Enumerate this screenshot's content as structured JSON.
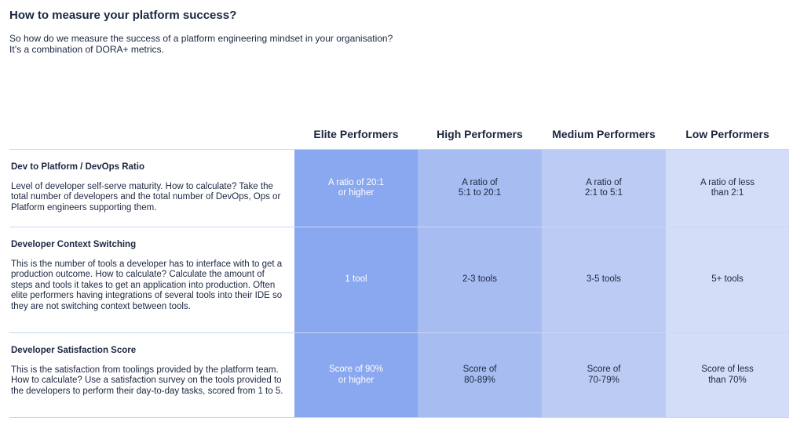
{
  "header": {
    "title": "How to measure your platform success?",
    "subtitle": [
      "So how do we measure the success of a platform engineering mindset in your organisation?",
      "It’s a combination of DORA+ metrics."
    ]
  },
  "table": {
    "columns": [
      "Elite Performers",
      "High Performers",
      "Medium Performers",
      "Low Performers"
    ],
    "rows": [
      {
        "metric": "Dev to Platform / DevOps Ratio",
        "description": "Level of developer self-serve maturity. How to calculate? Take the total number of developers and the total number of DevOps, Ops or Platform engineers supporting them.",
        "cells": [
          "A ratio of 20:1\nor higher",
          "A ratio of\n5:1 to 20:1",
          "A ratio of\n2:1 to 5:1",
          "A ratio of less\nthan 2:1"
        ]
      },
      {
        "metric": "Developer Context Switching",
        "description": "This is the number of tools a developer has to interface with to get a production outcome. How to calculate? Calculate the amount of steps and tools it takes to get an application into production. Often elite performers having integrations of several tools into their IDE so they are not switching context between tools.",
        "cells": [
          "1 tool",
          "2-3 tools",
          "3-5 tools",
          "5+ tools"
        ]
      },
      {
        "metric": "Developer Satisfaction Score",
        "description": "This is the satisfaction from toolings provided by the platform team. How to calculate? Use a satisfaction survey on the tools provided to the developers to perform their day-to-day tasks, scored from 1 to 5.",
        "cells": [
          "Score of 90%\nor higher",
          "Score of\n80-89%",
          "Score of\n70-79%",
          "Score of less\nthan 70%"
        ]
      }
    ]
  }
}
